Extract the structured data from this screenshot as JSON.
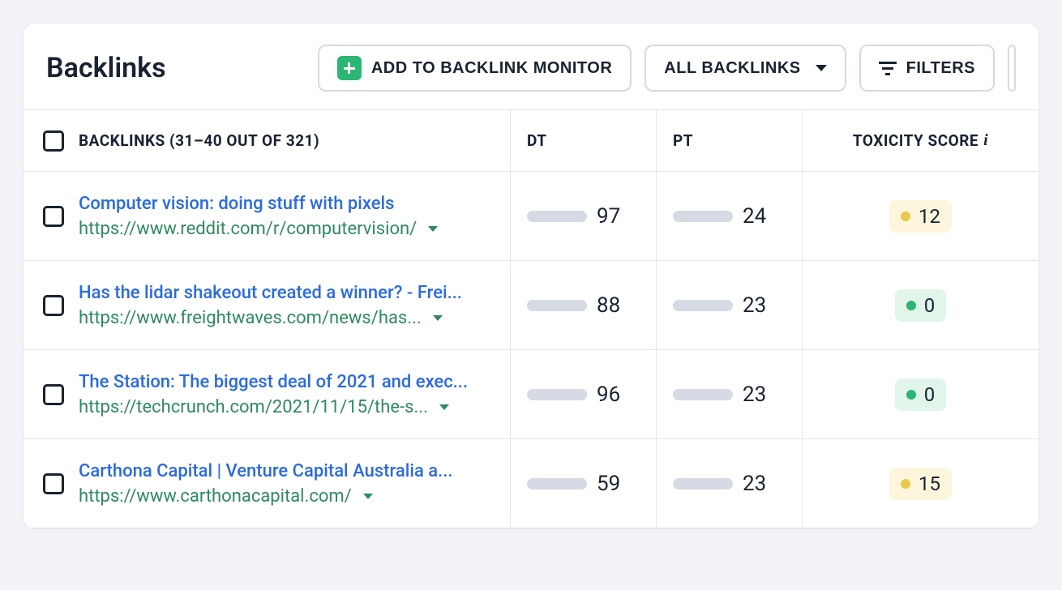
{
  "title": "Backlinks",
  "buttons": {
    "add": "ADD TO BACKLINK MONITOR",
    "all": "ALL BACKLINKS",
    "filters": "FILTERS"
  },
  "columns": {
    "backlinks": "BACKLINKS (31–40 OUT OF 321)",
    "dt": "DT",
    "pt": "PT",
    "tox": "TOXICITY SCORE"
  },
  "colors": {
    "dt_fill": "#3a3f5c",
    "pt_fill": "#b34fc4",
    "bar_bg": "#d5dae4",
    "tox_green_bg": "#e2f5ea",
    "tox_green_dot": "#2bb673",
    "tox_yellow_bg": "#fdf6dc",
    "tox_yellow_dot": "#e9c94b"
  },
  "rows": [
    {
      "title": "Computer vision: doing stuff with pixels",
      "url": "https://www.reddit.com/r/computervision/",
      "dt": 97,
      "pt": 24,
      "tox": 12,
      "tox_style": "yellow"
    },
    {
      "title": "Has the lidar shakeout created a winner? - Frei...",
      "url": "https://www.freightwaves.com/news/has...",
      "dt": 88,
      "pt": 23,
      "tox": 0,
      "tox_style": "green"
    },
    {
      "title": "The Station: The biggest deal of 2021 and exec...",
      "url": "https://techcrunch.com/2021/11/15/the-s...",
      "dt": 96,
      "pt": 23,
      "tox": 0,
      "tox_style": "green"
    },
    {
      "title": "Carthona Capital | Venture Capital Australia a...",
      "url": "https://www.carthonacapital.com/",
      "dt": 59,
      "pt": 23,
      "tox": 15,
      "tox_style": "yellow"
    }
  ]
}
